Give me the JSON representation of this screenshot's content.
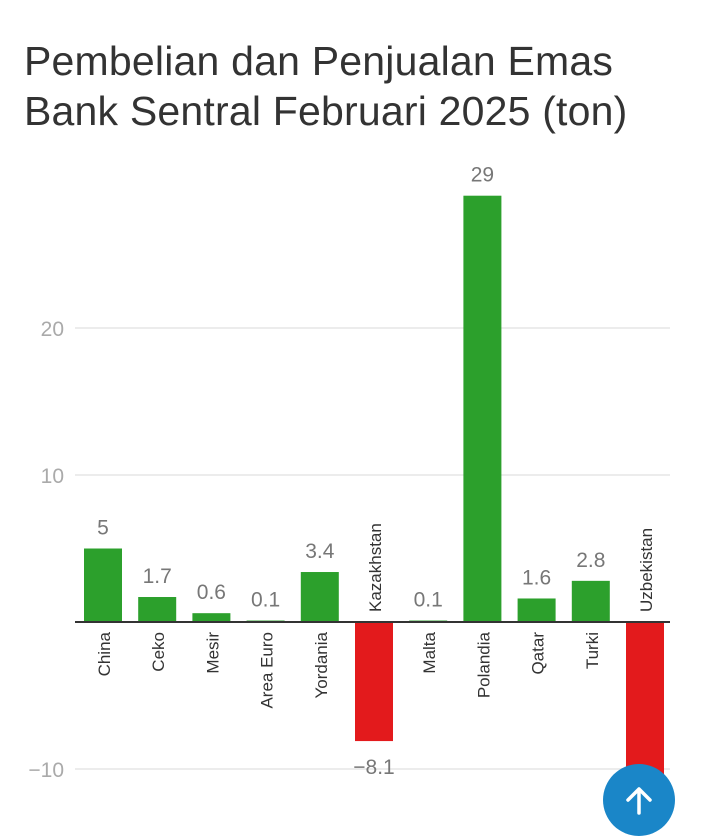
{
  "header": {
    "title_line1": "Pembelian dan Penjualan Emas",
    "title_line2": "Bank Sentral Februari 2025 (ton)"
  },
  "colors": {
    "positive": "#2ca02c",
    "negative": "#e31a1c",
    "fab": "#1a86c8",
    "grid": "#e5e5e5",
    "axis": "#333333",
    "tick_label": "#aaaaaa",
    "value_label": "#777777",
    "category_label": "#333333"
  },
  "scroll_top_button": {
    "icon": "arrow-up-icon"
  },
  "chart_data": {
    "type": "bar",
    "title": "Pembelian dan Penjualan Emas Bank Sentral Februari 2025 (ton)",
    "xlabel": "",
    "ylabel": "",
    "categories": [
      "China",
      "Ceko",
      "Mesir",
      "Area Euro",
      "Yordania",
      "Kazakhstan",
      "Malta",
      "Polandia",
      "Qatar",
      "Turki",
      "Uzbekistan"
    ],
    "values": [
      5,
      1.7,
      0.6,
      0.1,
      3.4,
      -8.1,
      0.1,
      29,
      1.6,
      2.8,
      -12.5
    ],
    "value_labels": [
      "5",
      "1.7",
      "0.6",
      "0.1",
      "3.4",
      "−8.1",
      "0.1",
      "29",
      "1.6",
      "2.8",
      ""
    ],
    "yticks": [
      -10,
      10,
      20
    ],
    "ytick_labels": [
      "−10",
      "10",
      "20"
    ],
    "ylim": [
      -14,
      30
    ],
    "grid": true,
    "legend": null,
    "note": "Uzbekistan value label obscured by floating button; value estimated"
  }
}
